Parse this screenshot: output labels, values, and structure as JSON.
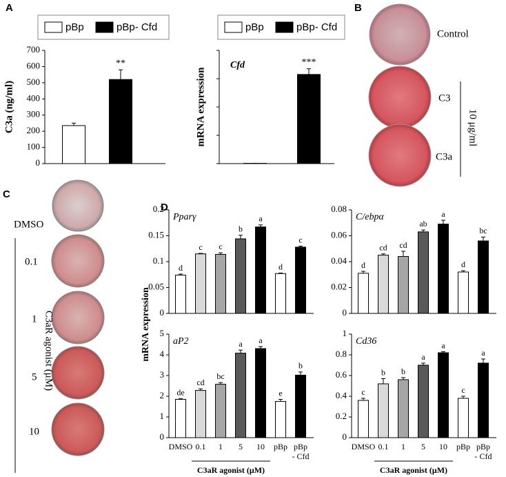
{
  "panel_labels": [
    "A",
    "B",
    "C",
    "D"
  ],
  "panel_b": {
    "labels": [
      "Control",
      "C3",
      "C3a"
    ],
    "dose": "10 μg/ml"
  },
  "panel_c": {
    "labels": [
      "DMSO",
      "0.1",
      "1",
      "5",
      "10"
    ],
    "axis_label": "C3aR agonist (μM)"
  },
  "panel_d": {
    "y_label": "mRNA expression",
    "x_label": "C3aR agonist (μM)",
    "categories": [
      "DMSO",
      "0.1",
      "1",
      "5",
      "10",
      "pBp",
      [
        "pBp",
        "- Cfd"
      ]
    ],
    "colors": [
      "#ffffff",
      "#d9d9d9",
      "#a6a6a6",
      "#595959",
      "#000000",
      "#ffffff",
      "#000000"
    ]
  },
  "chart_data": [
    {
      "type": "bar",
      "y_label": "C3a (ng/ml)",
      "categories": [
        "pBp",
        "pBp- Cfd"
      ],
      "colors": [
        "#ffffff",
        "#000000"
      ],
      "values": [
        235,
        520
      ],
      "errors": [
        15,
        60
      ],
      "annotations": [
        null,
        "**"
      ],
      "ylim": [
        0,
        700
      ],
      "yticks": [
        0,
        100,
        200,
        300,
        400,
        500,
        600,
        700
      ],
      "tick_labels": true
    },
    {
      "type": "bar",
      "y_label": "mRNA expression",
      "title": "Cfd",
      "categories": [
        "pBp",
        "pBp- Cfd"
      ],
      "colors": [
        "#ffffff",
        "#000000"
      ],
      "values": [
        0.01,
        3.15
      ],
      "errors": [
        0,
        0.2
      ],
      "annotations": [
        null,
        "***"
      ],
      "ylim": [
        0,
        4
      ],
      "yticks": [
        0,
        1,
        2,
        3,
        4
      ],
      "tick_labels": false
    },
    {
      "type": "bar",
      "title": "Pparγ",
      "values": [
        0.074,
        0.115,
        0.114,
        0.144,
        0.167,
        0.077,
        0.128
      ],
      "errors": [
        0.002,
        0.001,
        0.003,
        0.007,
        0.004,
        0.001,
        0.002
      ],
      "letters": [
        "d",
        "c",
        "c",
        "b",
        "a",
        "d",
        "c"
      ],
      "ylim": [
        0,
        0.2
      ],
      "yticks": [
        0,
        0.05,
        0.1,
        0.15,
        0.2
      ],
      "tick_labels": true
    },
    {
      "type": "bar",
      "title": "C/ebpα",
      "values": [
        0.031,
        0.045,
        0.044,
        0.063,
        0.069,
        0.032,
        0.056
      ],
      "errors": [
        0.0015,
        0.001,
        0.004,
        0.0015,
        0.003,
        0.001,
        0.003
      ],
      "letters": [
        "d",
        "cd",
        "cd",
        "ab",
        "a",
        "d",
        "bc"
      ],
      "ylim": [
        0,
        0.08
      ],
      "yticks": [
        0,
        0.02,
        0.04,
        0.06,
        0.08
      ],
      "tick_labels": true
    },
    {
      "type": "bar",
      "title": "aP2",
      "values": [
        1.85,
        2.28,
        2.58,
        4.08,
        4.3,
        1.75,
        3.02
      ],
      "errors": [
        0.03,
        0.08,
        0.08,
        0.15,
        0.1,
        0.1,
        0.15
      ],
      "letters": [
        "de",
        "cd",
        "bc",
        "a",
        "a",
        "e",
        "b"
      ],
      "ylim": [
        0,
        5
      ],
      "yticks": [
        0,
        1,
        2,
        3,
        4,
        5
      ],
      "tick_labels": true
    },
    {
      "type": "bar",
      "title": "Cd36",
      "values": [
        0.36,
        0.52,
        0.56,
        0.7,
        0.82,
        0.38,
        0.72
      ],
      "errors": [
        0.02,
        0.05,
        0.02,
        0.02,
        0.01,
        0.02,
        0.04
      ],
      "letters": [
        "c",
        "b",
        "b",
        "a",
        "a",
        "c",
        "a"
      ],
      "ylim": [
        0,
        1
      ],
      "yticks": [
        0,
        0.2,
        0.4,
        0.6,
        0.8,
        1
      ],
      "tick_labels": true
    }
  ]
}
